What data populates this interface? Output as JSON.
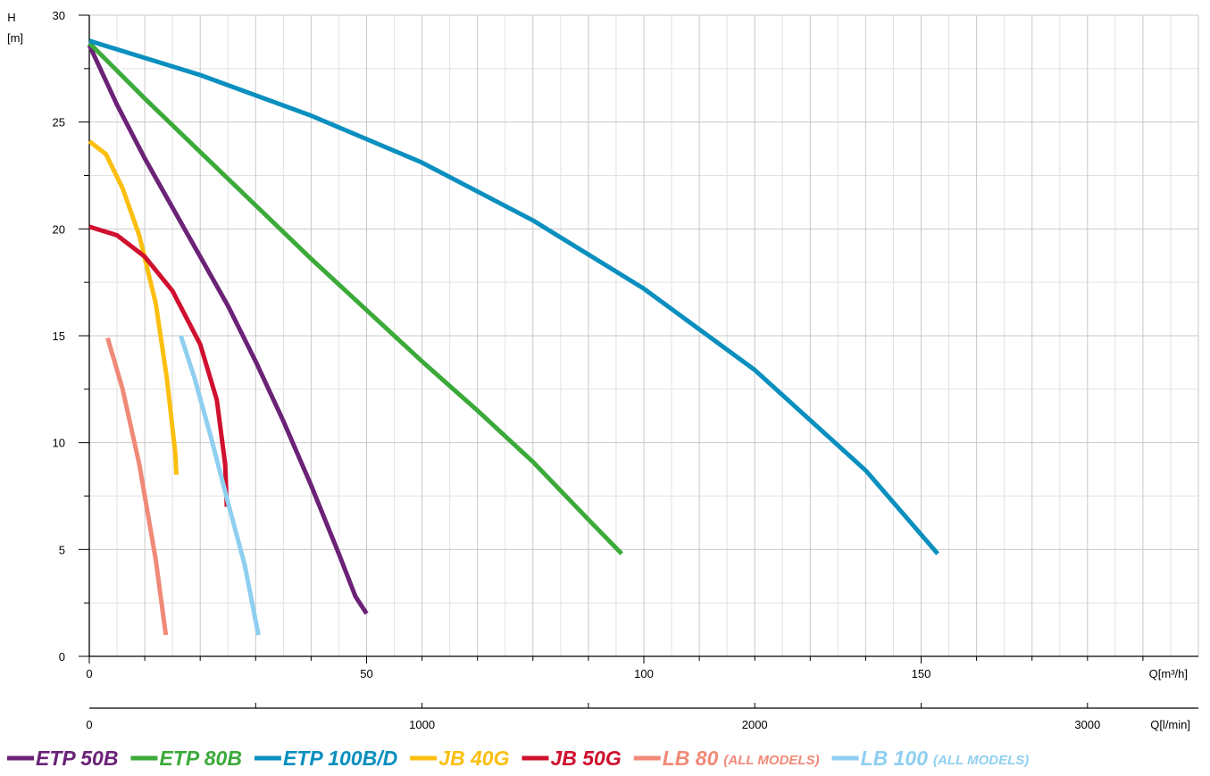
{
  "chart_data": {
    "type": "line",
    "ylabel": "H",
    "yunit": "[m]",
    "xlabel": "Q[m³/h]",
    "x2label": "Q[l/min]",
    "xlim": [
      0,
      200
    ],
    "ylim": [
      0,
      30
    ],
    "x_ticks": [
      "0",
      "50",
      "100",
      "150"
    ],
    "x2_ticks": [
      "0",
      "1000",
      "2000",
      "3000"
    ],
    "y_ticks": [
      "0",
      "5",
      "10",
      "15",
      "20",
      "25",
      "30"
    ],
    "grid": true,
    "legend_position": "bottom",
    "series": [
      {
        "name": "ETP 50B",
        "note": "",
        "color": "#6b2277",
        "x": [
          0,
          5,
          10,
          15,
          20,
          25,
          30,
          35,
          40,
          45,
          48,
          50
        ],
        "y": [
          28.6,
          25.8,
          23.3,
          21,
          18.7,
          16.4,
          13.8,
          11,
          8,
          4.8,
          2.8,
          2
        ]
      },
      {
        "name": "ETP 80B",
        "note": "",
        "color": "#3caa3a",
        "x": [
          0,
          10,
          20,
          30,
          40,
          50,
          60,
          70,
          80,
          90,
          96
        ],
        "y": [
          28.7,
          26.1,
          23.6,
          21.1,
          18.6,
          16.2,
          13.8,
          11.5,
          9.1,
          6.4,
          4.8
        ]
      },
      {
        "name": "ETP 100B/D",
        "note": "",
        "color": "#0a8fbf",
        "x": [
          0,
          20,
          40,
          60,
          80,
          100,
          120,
          140,
          153
        ],
        "y": [
          28.8,
          27.2,
          25.3,
          23.1,
          20.4,
          17.2,
          13.4,
          8.7,
          4.8
        ]
      },
      {
        "name": "JB 40G",
        "note": "",
        "color": "#fbbf10",
        "x": [
          0,
          3,
          6,
          9,
          12,
          14,
          15.5,
          15.7
        ],
        "y": [
          24.1,
          23.5,
          21.9,
          19.7,
          16.5,
          13,
          9.5,
          8.5
        ]
      },
      {
        "name": "JB 50G",
        "note": "",
        "color": "#d0102e",
        "x": [
          0,
          5,
          10,
          15,
          20,
          23,
          24.5,
          24.8
        ],
        "y": [
          20.1,
          19.7,
          18.7,
          17.1,
          14.6,
          12,
          9,
          7
        ]
      },
      {
        "name": "LB 80",
        "note": "(ALL MODELS)",
        "color": "#f08a78",
        "x": [
          3.3,
          6,
          9,
          12,
          13.8
        ],
        "y": [
          14.9,
          12.5,
          9,
          4.5,
          1
        ]
      },
      {
        "name": "LB 100",
        "note": "(ALL MODELS)",
        "color": "#8fcff0",
        "x": [
          16.5,
          19,
          22,
          25,
          28,
          30.5
        ],
        "y": [
          15,
          13,
          10.2,
          7.2,
          4.3,
          1
        ]
      }
    ]
  }
}
